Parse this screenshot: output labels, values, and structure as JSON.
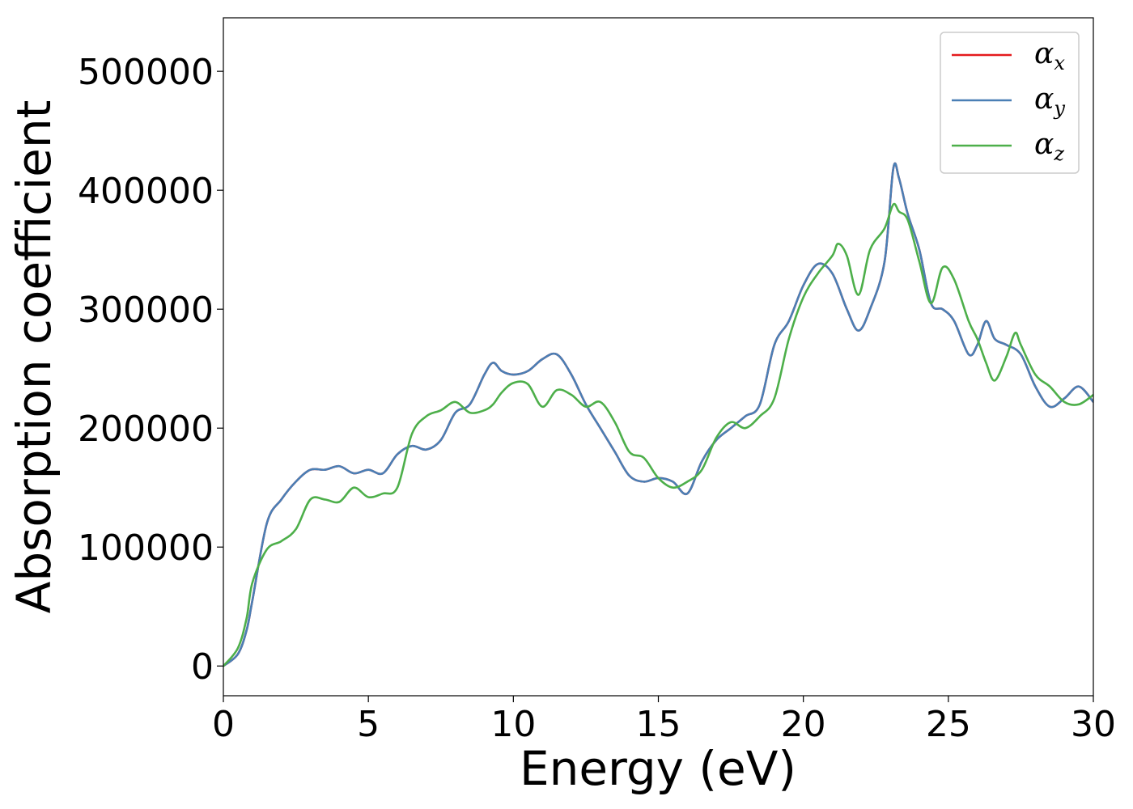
{
  "chart_data": {
    "type": "line",
    "title": "",
    "xlabel": "Energy (eV)",
    "ylabel": "Absorption coefficient",
    "xlim": [
      0,
      30
    ],
    "ylim": [
      -25000,
      545000
    ],
    "xticks": [
      0,
      5,
      10,
      15,
      20,
      25,
      30
    ],
    "xtick_labels": [
      "0",
      "5",
      "10",
      "15",
      "20",
      "25",
      "30"
    ],
    "yticks": [
      0,
      100000,
      200000,
      300000,
      400000,
      500000
    ],
    "ytick_labels": [
      "0",
      "100000",
      "200000",
      "300000",
      "400000",
      "500000"
    ],
    "grid": false,
    "legend_position": "top-right",
    "series": [
      {
        "name": "α",
        "subscript": "x",
        "color": "#e41a1c",
        "x": [
          0,
          0.5,
          0.8,
          1.0,
          1.5,
          2.0,
          2.5,
          3.0,
          3.5,
          4.0,
          4.5,
          5.0,
          5.5,
          6.0,
          6.5,
          7.0,
          7.5,
          8.0,
          8.5,
          9.0,
          9.3,
          9.6,
          10.0,
          10.5,
          11.0,
          11.5,
          12.0,
          12.5,
          13.0,
          13.5,
          14.0,
          14.5,
          15.0,
          15.5,
          16.0,
          16.5,
          17.0,
          17.5,
          18.0,
          18.5,
          19.0,
          19.5,
          20.0,
          20.5,
          21.0,
          21.5,
          21.9,
          22.3,
          22.8,
          23.1,
          23.3,
          23.6,
          24.0,
          24.4,
          24.8,
          25.2,
          25.7,
          26.0,
          26.3,
          26.6,
          27.0,
          27.5,
          28.0,
          28.5,
          29.0,
          29.5,
          30.0
        ],
        "y": [
          0,
          10000,
          30000,
          55000,
          120000,
          140000,
          155000,
          165000,
          165000,
          168000,
          162000,
          165000,
          162000,
          178000,
          185000,
          182000,
          190000,
          213000,
          220000,
          245000,
          255000,
          248000,
          245000,
          248000,
          258000,
          262000,
          245000,
          220000,
          200000,
          180000,
          160000,
          155000,
          158000,
          155000,
          145000,
          172000,
          190000,
          200000,
          210000,
          220000,
          270000,
          290000,
          320000,
          338000,
          330000,
          300000,
          282000,
          300000,
          340000,
          418000,
          410000,
          380000,
          350000,
          305000,
          300000,
          290000,
          262000,
          270000,
          290000,
          275000,
          270000,
          262000,
          235000,
          218000,
          225000,
          235000,
          222000
        ]
      },
      {
        "name": "α",
        "subscript": "y",
        "color": "#4a7fb5",
        "x": [
          0,
          0.5,
          0.8,
          1.0,
          1.5,
          2.0,
          2.5,
          3.0,
          3.5,
          4.0,
          4.5,
          5.0,
          5.5,
          6.0,
          6.5,
          7.0,
          7.5,
          8.0,
          8.5,
          9.0,
          9.3,
          9.6,
          10.0,
          10.5,
          11.0,
          11.5,
          12.0,
          12.5,
          13.0,
          13.5,
          14.0,
          14.5,
          15.0,
          15.5,
          16.0,
          16.5,
          17.0,
          17.5,
          18.0,
          18.5,
          19.0,
          19.5,
          20.0,
          20.5,
          21.0,
          21.5,
          21.9,
          22.3,
          22.8,
          23.1,
          23.3,
          23.6,
          24.0,
          24.4,
          24.8,
          25.2,
          25.7,
          26.0,
          26.3,
          26.6,
          27.0,
          27.5,
          28.0,
          28.5,
          29.0,
          29.5,
          30.0
        ],
        "y": [
          0,
          10000,
          30000,
          55000,
          120000,
          140000,
          155000,
          165000,
          165000,
          168000,
          162000,
          165000,
          162000,
          178000,
          185000,
          182000,
          190000,
          213000,
          220000,
          245000,
          255000,
          248000,
          245000,
          248000,
          258000,
          262000,
          245000,
          220000,
          200000,
          180000,
          160000,
          155000,
          158000,
          155000,
          145000,
          172000,
          190000,
          200000,
          210000,
          220000,
          270000,
          290000,
          320000,
          338000,
          330000,
          300000,
          282000,
          300000,
          340000,
          418000,
          410000,
          380000,
          350000,
          305000,
          300000,
          290000,
          262000,
          270000,
          290000,
          275000,
          270000,
          262000,
          235000,
          218000,
          225000,
          235000,
          222000
        ]
      },
      {
        "name": "α",
        "subscript": "z",
        "color": "#4daf4a",
        "x": [
          0,
          0.5,
          0.8,
          1.0,
          1.5,
          2.0,
          2.5,
          3.0,
          3.5,
          4.0,
          4.5,
          5.0,
          5.5,
          6.0,
          6.5,
          7.0,
          7.5,
          8.0,
          8.5,
          9.0,
          9.3,
          9.6,
          10.0,
          10.5,
          11.0,
          11.5,
          12.0,
          12.5,
          13.0,
          13.5,
          14.0,
          14.5,
          15.0,
          15.5,
          16.0,
          16.5,
          17.0,
          17.5,
          18.0,
          18.5,
          19.0,
          19.5,
          20.0,
          20.5,
          21.0,
          21.2,
          21.5,
          21.9,
          22.3,
          22.8,
          23.1,
          23.3,
          23.6,
          24.0,
          24.4,
          24.8,
          25.2,
          25.7,
          26.0,
          26.3,
          26.6,
          27.0,
          27.3,
          27.5,
          28.0,
          28.5,
          29.0,
          29.5,
          30.0
        ],
        "y": [
          0,
          15000,
          40000,
          70000,
          98000,
          105000,
          115000,
          140000,
          140000,
          138000,
          150000,
          142000,
          145000,
          150000,
          195000,
          210000,
          215000,
          222000,
          213000,
          215000,
          220000,
          230000,
          238000,
          237000,
          218000,
          232000,
          228000,
          218000,
          222000,
          205000,
          180000,
          175000,
          158000,
          150000,
          155000,
          165000,
          192000,
          205000,
          200000,
          210000,
          225000,
          275000,
          310000,
          330000,
          345000,
          355000,
          345000,
          312000,
          350000,
          368000,
          388000,
          382000,
          375000,
          340000,
          305000,
          335000,
          325000,
          290000,
          275000,
          255000,
          240000,
          260000,
          280000,
          270000,
          245000,
          235000,
          222000,
          220000,
          228000
        ]
      }
    ]
  }
}
